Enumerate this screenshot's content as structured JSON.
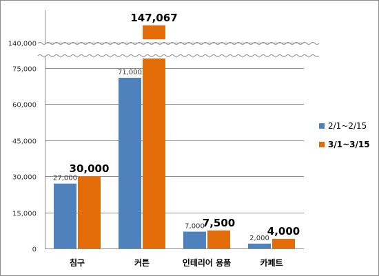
{
  "chart_data": {
    "type": "bar",
    "categories": [
      "침구",
      "커튼",
      "인테리어 용품",
      "카페트"
    ],
    "series": [
      {
        "name": "2/1~2/15",
        "values": [
          27000,
          71000,
          7000,
          2000
        ],
        "labels": [
          "27,000",
          "71,000",
          "7,000",
          "2,000"
        ],
        "color": "#4f81bd"
      },
      {
        "name": "3/1~3/15",
        "values": [
          30000,
          147067,
          7500,
          4000
        ],
        "labels": [
          "30,000",
          "147,067",
          "7,500",
          "4,000"
        ],
        "color": "#e36c09"
      }
    ],
    "y_ticks": [
      {
        "value": 0,
        "label": "0"
      },
      {
        "value": 15000,
        "label": "15,000"
      },
      {
        "value": 30000,
        "label": "30,000"
      },
      {
        "value": 45000,
        "label": "45,000"
      },
      {
        "value": 60000,
        "label": "60,000"
      },
      {
        "value": 75000,
        "label": "75,000"
      },
      {
        "value": 140000,
        "label": "140,000"
      }
    ],
    "ylim": [
      0,
      150000
    ],
    "axis_break": [
      79000,
      139000
    ],
    "grid": true,
    "legend_position": "right"
  }
}
